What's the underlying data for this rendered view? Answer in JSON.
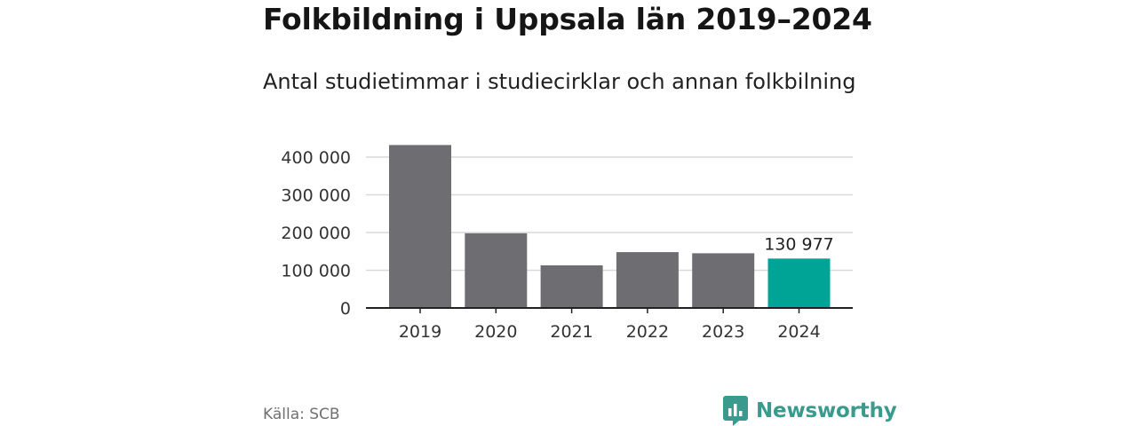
{
  "title": "Folkbildning i Uppsala län 2019–2024",
  "subtitle": "Antal studietimmar i studiecirklar och annan folkbilning",
  "source": "Källa: SCB",
  "brand": {
    "name": "Newsworthy",
    "icon": "newsworthy-logo-icon",
    "color": "#3a9a8e"
  },
  "chart_data": {
    "type": "bar",
    "title": "Folkbildning i Uppsala län 2019–2024",
    "subtitle": "Antal studietimmar i studiecirklar och annan folkbilning",
    "xlabel": "",
    "ylabel": "",
    "categories": [
      "2019",
      "2020",
      "2021",
      "2022",
      "2023",
      "2024"
    ],
    "values": [
      432000,
      198000,
      113000,
      148000,
      145000,
      130977
    ],
    "highlight_index": 5,
    "data_labels": [
      {
        "index": 5,
        "text": "130 977"
      }
    ],
    "ylim": [
      0,
      440000
    ],
    "yticks": [
      {
        "value": 0,
        "label": "0"
      },
      {
        "value": 100000,
        "label": "100 000"
      },
      {
        "value": 200000,
        "label": "200 000"
      },
      {
        "value": 300000,
        "label": "300 000"
      },
      {
        "value": 400000,
        "label": "400 000"
      }
    ],
    "grid": true,
    "legend": "none",
    "colors": {
      "bar": "#6e6d72",
      "highlight": "#00a497",
      "grid": "#d9d9d9",
      "axis": "#222222"
    }
  }
}
